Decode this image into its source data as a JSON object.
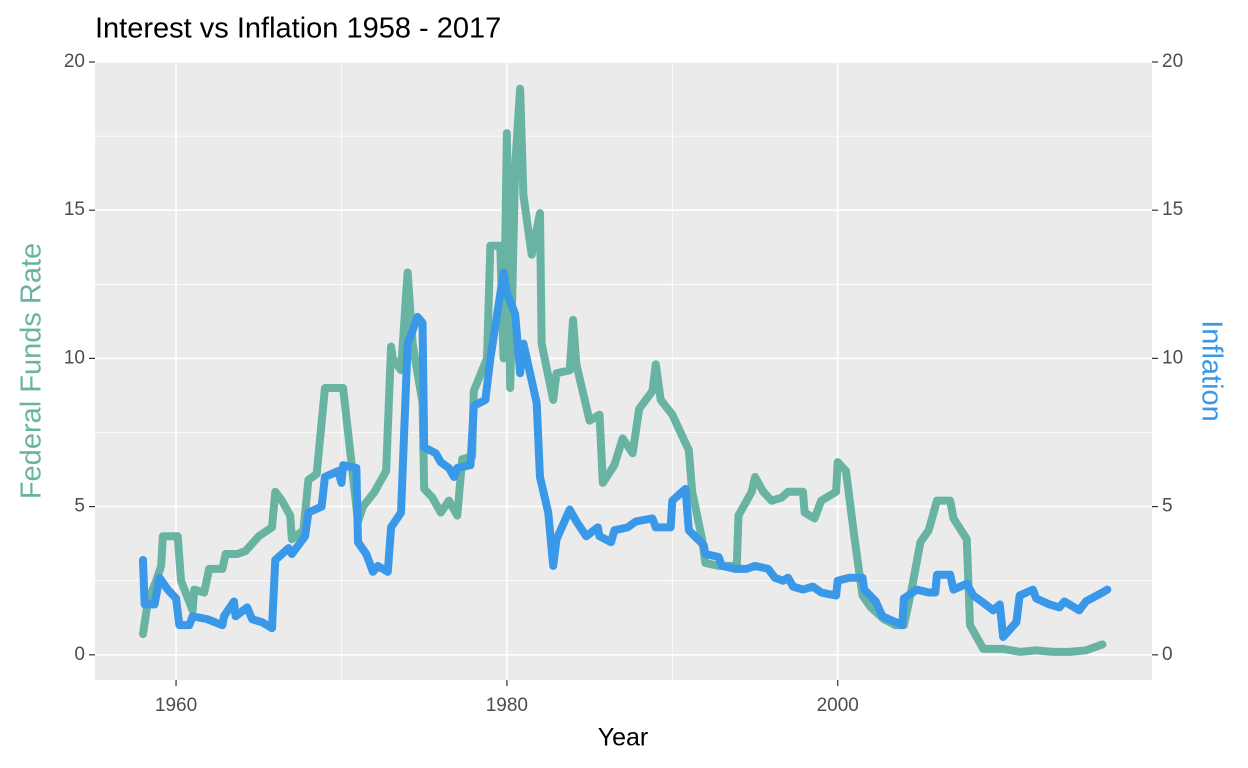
{
  "chart_data": {
    "type": "line",
    "title": "Interest vs Inflation 1958 - 2017",
    "x_label": "Year",
    "xlim": [
      1955.1,
      2019
    ],
    "xticks": [
      1960,
      1980,
      2000
    ],
    "ylim": [
      -0.85,
      20
    ],
    "yticks": [
      0,
      5,
      10,
      15,
      20
    ],
    "y2lim": [
      -0.85,
      20
    ],
    "y2ticks": [
      0,
      5,
      10,
      15,
      20
    ],
    "grid": true,
    "series": [
      {
        "name": "Federal Funds Rate",
        "color": "#69b3a2",
        "x": [
          1958,
          1958.3,
          1958.8,
          1959.1,
          1959.2,
          1960.1,
          1960.3,
          1961,
          1961.1,
          1961.7,
          1962,
          1962.8,
          1963,
          1963.7,
          1964.2,
          1965,
          1965.8,
          1966,
          1966.4,
          1966.9,
          1967,
          1967.7,
          1968,
          1968.5,
          1969,
          1970.1,
          1970.5,
          1971,
          1971.3,
          1972,
          1972.7,
          1973,
          1973.1,
          1973.6,
          1974,
          1974.3,
          1974.9,
          1975,
          1975.5,
          1976,
          1976.5,
          1977,
          1977.3,
          1977.9,
          1978,
          1978.8,
          1979,
          1979.6,
          1979.8,
          1980,
          1980.2,
          1980.5,
          1980.8,
          1981,
          1981.5,
          1982,
          1982.1,
          1982.8,
          1983,
          1983.8,
          1984,
          1984.2,
          1985,
          1985.6,
          1985.8,
          1986.5,
          1987,
          1987.6,
          1988,
          1988.8,
          1989,
          1989.3,
          1990,
          1991,
          1991.2,
          1991.8,
          1992,
          1992.8,
          1993.9,
          1994,
          1994.8,
          1995,
          1995.5,
          1996,
          1996.6,
          1997,
          1997.9,
          1998,
          1998.6,
          1999,
          1999.9,
          2000,
          2000.5,
          2001,
          2001.5,
          2002,
          2002.8,
          2003.5,
          2004,
          2004.5,
          2005,
          2005.5,
          2006,
          2006.8,
          2007,
          2007.8,
          2008,
          2008.8,
          2010,
          2011,
          2012,
          2013,
          2014,
          2015,
          2016
        ],
        "values": [
          0.7,
          1.8,
          2.5,
          3.0,
          4.0,
          4.0,
          2.5,
          1.5,
          2.2,
          2.1,
          2.9,
          2.9,
          3.4,
          3.4,
          3.5,
          4.0,
          4.3,
          5.5,
          5.2,
          4.7,
          3.9,
          4.2,
          5.9,
          6.1,
          9.0,
          9.0,
          7.0,
          4.5,
          5.0,
          5.5,
          6.2,
          10.4,
          10.0,
          9.6,
          12.9,
          10.5,
          8.5,
          5.6,
          5.3,
          4.8,
          5.2,
          4.7,
          6.6,
          6.7,
          8.9,
          10.0,
          13.8,
          13.8,
          10.0,
          17.6,
          9.0,
          16.5,
          19.1,
          15.5,
          13.5,
          14.9,
          10.5,
          8.6,
          9.5,
          9.6,
          11.3,
          9.8,
          7.9,
          8.1,
          5.8,
          6.4,
          7.3,
          6.8,
          8.3,
          8.9,
          9.8,
          8.6,
          8.1,
          6.9,
          5.5,
          3.9,
          3.1,
          3.0,
          3.0,
          4.7,
          5.5,
          6.0,
          5.5,
          5.2,
          5.3,
          5.5,
          5.5,
          4.8,
          4.6,
          5.2,
          5.5,
          6.5,
          6.2,
          4.0,
          2.0,
          1.6,
          1.2,
          1.0,
          1.0,
          2.3,
          3.8,
          4.2,
          5.2,
          5.2,
          4.6,
          3.9,
          1.0,
          0.2,
          0.2,
          0.1,
          0.15,
          0.1,
          0.1,
          0.15,
          0.35
        ]
      },
      {
        "name": "Inflation",
        "color": "#3a98e8",
        "axis": "y2",
        "x": [
          1958,
          1958.1,
          1958.7,
          1959,
          1959.5,
          1960,
          1960.2,
          1960.8,
          1961,
          1961.9,
          1962.8,
          1962.9,
          1963.5,
          1963.6,
          1964.3,
          1964.6,
          1965.2,
          1965.8,
          1966,
          1966.8,
          1967,
          1967.8,
          1968,
          1968.8,
          1969,
          1969.8,
          1970,
          1970.1,
          1970.9,
          1971,
          1971.5,
          1971.9,
          1972.2,
          1972.8,
          1973,
          1973.6,
          1974,
          1974.6,
          1974.9,
          1975,
          1975.7,
          1976,
          1976.5,
          1976.8,
          1977,
          1977.8,
          1978,
          1978.7,
          1979,
          1979.8,
          1980,
          1980.5,
          1980.8,
          1981,
          1981.8,
          1982,
          1982.5,
          1982.8,
          1983,
          1983.8,
          1984.2,
          1984.8,
          1985.5,
          1985.6,
          1986.3,
          1986.5,
          1987.3,
          1987.8,
          1988.8,
          1989,
          1989.9,
          1990,
          1990.8,
          1991,
          1991.9,
          1992,
          1992.8,
          1993,
          1993.8,
          1994.5,
          1995,
          1995.8,
          1996.2,
          1996.7,
          1997,
          1997.3,
          1997.9,
          1998.5,
          1999,
          1999.9,
          2000,
          2000.7,
          2001.5,
          2001.6,
          2002.3,
          2002.7,
          2003.5,
          2003.9,
          2004,
          2004.8,
          2005.5,
          2005.9,
          2006,
          2006.8,
          2007,
          2007.8,
          2008.2,
          2008.7,
          2009.4,
          2009.8,
          2010,
          2010.8,
          2011,
          2011.8,
          2012,
          2012.8,
          2013.4,
          2013.7,
          2014.6,
          2015,
          2016,
          2016.3
        ],
        "values": [
          3.2,
          1.7,
          1.7,
          2.6,
          2.2,
          1.9,
          1.0,
          1.0,
          1.3,
          1.2,
          1.0,
          1.3,
          1.8,
          1.3,
          1.6,
          1.2,
          1.1,
          0.9,
          3.2,
          3.6,
          3.4,
          4.0,
          4.8,
          5.0,
          6.0,
          6.2,
          5.8,
          6.4,
          6.3,
          3.8,
          3.4,
          2.8,
          3.0,
          2.8,
          4.3,
          4.8,
          10.5,
          11.4,
          11.2,
          7.0,
          6.8,
          6.5,
          6.3,
          6.0,
          6.3,
          6.4,
          8.4,
          8.6,
          10.0,
          12.9,
          12.2,
          11.5,
          9.5,
          10.5,
          8.5,
          6.0,
          4.8,
          3.0,
          3.9,
          4.9,
          4.5,
          4.0,
          4.3,
          4.0,
          3.8,
          4.2,
          4.3,
          4.5,
          4.6,
          4.3,
          4.3,
          5.2,
          5.6,
          4.2,
          3.7,
          3.4,
          3.3,
          3.0,
          2.9,
          2.9,
          3.0,
          2.9,
          2.6,
          2.5,
          2.6,
          2.3,
          2.2,
          2.3,
          2.1,
          2.0,
          2.5,
          2.6,
          2.6,
          2.2,
          1.8,
          1.3,
          1.1,
          1.0,
          1.9,
          2.2,
          2.1,
          2.1,
          2.7,
          2.7,
          2.2,
          2.4,
          2.0,
          1.8,
          1.5,
          1.7,
          0.6,
          1.1,
          2.0,
          2.2,
          1.9,
          1.7,
          1.6,
          1.8,
          1.5,
          1.8,
          2.1,
          2.2
        ]
      }
    ]
  }
}
